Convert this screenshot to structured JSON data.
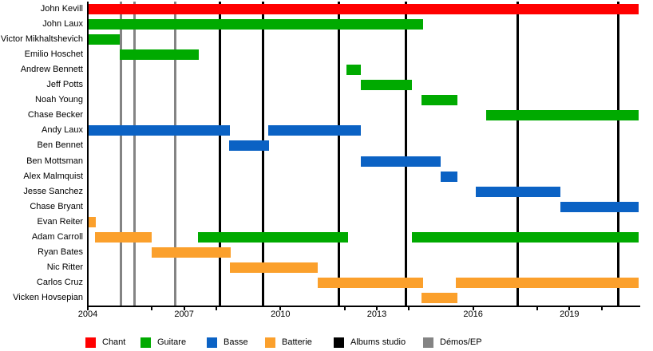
{
  "chart_data": {
    "type": "timeline",
    "title": "",
    "description": "Band line-up timeline: members (rows) vs years, colored by role, with studio album and demo/EP release markers",
    "x_axis": {
      "start": 2004,
      "end": 2021.18,
      "label_years": [
        2004,
        2007,
        2010,
        2013,
        2016,
        2019
      ],
      "tick_years": [
        2004,
        2006,
        2007,
        2008,
        2010,
        2012,
        2013,
        2014,
        2016,
        2018,
        2019,
        2020
      ]
    },
    "present": 2021.15,
    "role_colors": {
      "chant": "#FF0000",
      "guitare": "#00AA00",
      "basse": "#0B62C4",
      "batterie": "#FBA02C"
    },
    "members": [
      {
        "name": "John Kevill",
        "stints": [
          {
            "role": "chant",
            "start": 2004,
            "end": "present"
          }
        ]
      },
      {
        "name": "John Laux",
        "stints": [
          {
            "role": "guitare",
            "start": 2004,
            "end": 2014.45
          }
        ]
      },
      {
        "name": "Victor Mikhaltshevich",
        "stints": [
          {
            "role": "guitare",
            "start": 2004,
            "end": 2005
          }
        ]
      },
      {
        "name": "Emilio Hoschet",
        "stints": [
          {
            "role": "guitare",
            "start": 2005,
            "end": 2007.45
          }
        ]
      },
      {
        "name": "Andrew Bennett",
        "stints": [
          {
            "role": "guitare",
            "start": 2012.05,
            "end": 2012.5
          }
        ]
      },
      {
        "name": "Jeff Potts",
        "stints": [
          {
            "role": "guitare",
            "start": 2012.5,
            "end": 2014.1
          }
        ]
      },
      {
        "name": "Noah Young",
        "stints": [
          {
            "role": "guitare",
            "start": 2014.4,
            "end": 2015.5
          }
        ]
      },
      {
        "name": "Chase Becker",
        "stints": [
          {
            "role": "guitare",
            "start": 2016.4,
            "end": "present"
          }
        ]
      },
      {
        "name": "Andy Laux",
        "stints": [
          {
            "role": "basse",
            "start": 2004,
            "end": 2008.42
          },
          {
            "role": "basse",
            "start": 2009.62,
            "end": 2012.5
          }
        ]
      },
      {
        "name": "Ben Bennet",
        "stints": [
          {
            "role": "basse",
            "start": 2008.4,
            "end": 2009.65
          }
        ]
      },
      {
        "name": "Ben Mottsman",
        "stints": [
          {
            "role": "basse",
            "start": 2012.5,
            "end": 2015.0
          }
        ]
      },
      {
        "name": "Alex Malmquist",
        "stints": [
          {
            "role": "basse",
            "start": 2015.0,
            "end": 2015.52
          }
        ]
      },
      {
        "name": "Jesse Sanchez",
        "stints": [
          {
            "role": "basse",
            "start": 2016.08,
            "end": 2018.72
          }
        ]
      },
      {
        "name": "Chase Bryant",
        "stints": [
          {
            "role": "basse",
            "start": 2018.72,
            "end": "present"
          }
        ]
      },
      {
        "name": "Evan Reiter",
        "stints": [
          {
            "role": "batterie",
            "start": 2004,
            "end": 2004.25
          }
        ]
      },
      {
        "name": "Adam Carroll",
        "stints": [
          {
            "role": "batterie",
            "start": 2004.22,
            "end": 2006.0
          },
          {
            "role": "guitare",
            "start": 2007.43,
            "end": 2012.1
          },
          {
            "role": "guitare",
            "start": 2014.1,
            "end": "present"
          }
        ]
      },
      {
        "name": "Ryan Bates",
        "stints": [
          {
            "role": "batterie",
            "start": 2006.0,
            "end": 2008.45
          }
        ]
      },
      {
        "name": "Nic Ritter",
        "stints": [
          {
            "role": "batterie",
            "start": 2008.42,
            "end": 2011.15
          }
        ]
      },
      {
        "name": "Carlos Cruz",
        "stints": [
          {
            "role": "batterie",
            "start": 2011.15,
            "end": 2014.45
          },
          {
            "role": "batterie",
            "start": 2015.45,
            "end": "present"
          }
        ]
      },
      {
        "name": "Vicken Hovsepian",
        "stints": [
          {
            "role": "batterie",
            "start": 2014.4,
            "end": 2015.5
          }
        ]
      }
    ],
    "markers": [
      {
        "name": "albums-studio",
        "label": "Albums studio",
        "color": "#000000",
        "years": [
          2008.12,
          2009.45,
          2011.82,
          2013.92,
          2017.4,
          2020.52
        ]
      },
      {
        "name": "demos-ep",
        "label": "Démos/EP",
        "color": "#848484",
        "years": [
          2005.02,
          2005.45,
          2006.73
        ]
      }
    ],
    "legend": [
      {
        "label": "Chant",
        "color": "#FF0000"
      },
      {
        "label": "Guitare",
        "color": "#00AA00"
      },
      {
        "label": "Basse",
        "color": "#0B62C4"
      },
      {
        "label": "Batterie",
        "color": "#FBA02C"
      },
      {
        "label": "Albums studio",
        "color": "#000000"
      },
      {
        "label": "Démos/EP",
        "color": "#848484"
      }
    ]
  }
}
